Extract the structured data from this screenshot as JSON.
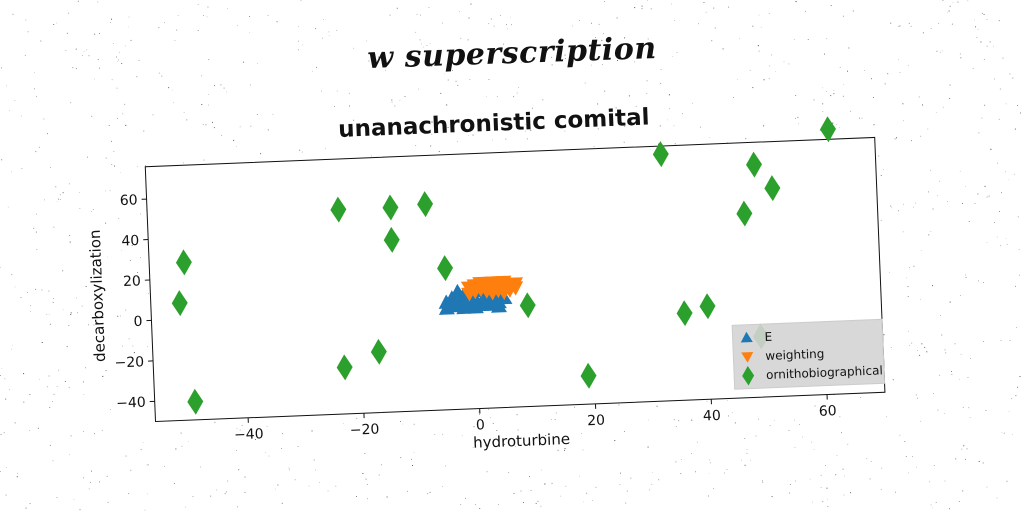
{
  "suptitle": "w superscription",
  "chart_data": {
    "type": "scatter",
    "title": "unanachronistic comital",
    "xlabel": "hydroturbine",
    "ylabel": "decarboxylization",
    "xlim": [
      -56,
      70
    ],
    "ylim": [
      -50,
      76
    ],
    "xticks": [
      -40,
      -20,
      0,
      20,
      40,
      60
    ],
    "yticks": [
      -40,
      -20,
      0,
      20,
      40,
      60
    ],
    "xtick_labels": [
      "−40",
      "−20",
      "0",
      "20",
      "40",
      "60"
    ],
    "ytick_labels": [
      "−40",
      "−20",
      "0",
      "20",
      "40",
      "60"
    ],
    "grid": false,
    "legend_position": "lower-right",
    "series": [
      {
        "name": "E",
        "marker": "triangle-up",
        "color": "#1f77b4",
        "points": [
          [
            -5,
            3
          ],
          [
            -4,
            5
          ],
          [
            -3,
            2
          ],
          [
            -2,
            6
          ],
          [
            -1,
            3
          ],
          [
            0,
            4
          ],
          [
            1,
            2
          ],
          [
            2,
            5
          ],
          [
            3,
            3
          ],
          [
            4,
            6
          ],
          [
            -4,
            1
          ],
          [
            -2,
            0
          ],
          [
            0,
            1
          ],
          [
            2,
            1
          ],
          [
            4,
            2
          ],
          [
            -1,
            7
          ],
          [
            1,
            8
          ],
          [
            3,
            7
          ],
          [
            -3,
            8
          ],
          [
            5,
            4
          ],
          [
            0,
            0
          ],
          [
            2,
            3
          ],
          [
            -2,
            2
          ],
          [
            4,
            0
          ],
          [
            -5,
            0
          ]
        ]
      },
      {
        "name": "weighting",
        "marker": "triangle-down",
        "color": "#ff7f0e",
        "points": [
          [
            -1,
            10
          ],
          [
            0,
            11
          ],
          [
            1,
            9
          ],
          [
            2,
            11
          ],
          [
            3,
            10
          ],
          [
            4,
            12
          ],
          [
            5,
            10
          ],
          [
            6,
            11
          ],
          [
            7,
            9
          ],
          [
            1,
            12
          ],
          [
            3,
            12
          ],
          [
            5,
            12
          ],
          [
            0,
            8
          ],
          [
            2,
            8
          ],
          [
            4,
            8
          ],
          [
            6,
            8
          ],
          [
            7,
            11
          ],
          [
            -1,
            7
          ],
          [
            3,
            7
          ],
          [
            5,
            7
          ]
        ]
      },
      {
        "name": "ornithobiographical",
        "marker": "thin-diamond",
        "color": "#2ca02c",
        "points": [
          [
            -50,
            28
          ],
          [
            -51,
            8
          ],
          [
            -49,
            -41
          ],
          [
            -23,
            -27
          ],
          [
            -17,
            -20
          ],
          [
            -23,
            51
          ],
          [
            -14,
            51
          ],
          [
            -14,
            35
          ],
          [
            -8,
            52
          ],
          [
            -5,
            20
          ],
          [
            9,
            0
          ],
          [
            19,
            -36
          ],
          [
            33,
            72
          ],
          [
            36,
            -7
          ],
          [
            40,
            -4
          ],
          [
            47,
            41
          ],
          [
            49,
            65
          ],
          [
            52,
            53
          ],
          [
            49,
            -20
          ],
          [
            62,
            81
          ]
        ]
      }
    ]
  }
}
